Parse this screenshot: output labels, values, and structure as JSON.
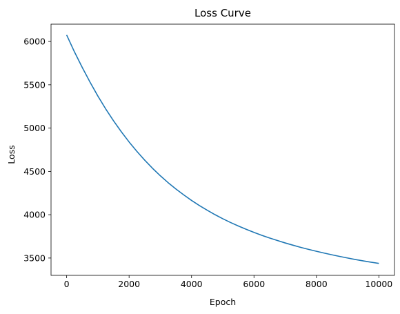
{
  "chart_data": {
    "type": "line",
    "title": "Loss Curve",
    "xlabel": "Epoch",
    "ylabel": "Loss",
    "xlim": [
      -500,
      10500
    ],
    "ylim": [
      3300,
      6200
    ],
    "xticks": [
      0,
      2000,
      4000,
      6000,
      8000,
      10000
    ],
    "yticks": [
      3500,
      4000,
      4500,
      5000,
      5500,
      6000
    ],
    "xtick_labels": [
      "0",
      "2000",
      "4000",
      "6000",
      "8000",
      "10000"
    ],
    "ytick_labels": [
      "3500",
      "4000",
      "4500",
      "5000",
      "5500",
      "6000"
    ],
    "grid": false,
    "legend": "none",
    "series": [
      {
        "color": "#1f77b4",
        "x": [
          0,
          250,
          500,
          750,
          1000,
          1250,
          1500,
          1750,
          2000,
          2250,
          2500,
          2750,
          3000,
          3250,
          3500,
          3750,
          4000,
          4250,
          4500,
          4750,
          5000,
          5250,
          5500,
          5750,
          6000,
          6250,
          6500,
          6750,
          7000,
          7250,
          7500,
          7750,
          8000,
          8250,
          8500,
          8750,
          9000,
          9250,
          9500,
          9750,
          10000
        ],
        "y": [
          6075,
          5880,
          5700,
          5530,
          5370,
          5222,
          5085,
          4958,
          4840,
          4731,
          4630,
          4536,
          4450,
          4370,
          4297,
          4229,
          4165,
          4106,
          4052,
          4001,
          3954,
          3910,
          3870,
          3832,
          3796,
          3762,
          3731,
          3702,
          3674,
          3648,
          3623,
          3600,
          3578,
          3557,
          3537,
          3518,
          3500,
          3483,
          3467,
          3452,
          3438
        ]
      }
    ]
  }
}
